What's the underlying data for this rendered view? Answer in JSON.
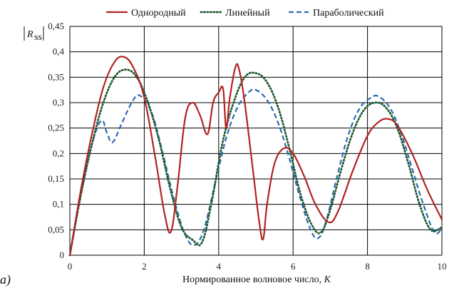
{
  "chart_data": {
    "type": "line",
    "panel_label": "a)",
    "xlabel_text": "Нормированное волновое число, ",
    "xlabel_var": "K",
    "ylabel_main": "R",
    "ylabel_sub": "ss",
    "xlim": [
      0,
      10
    ],
    "ylim": [
      0,
      0.45
    ],
    "grid": true,
    "legend_position": "top",
    "x_ticks": [
      "0",
      "2",
      "4",
      "6",
      "8",
      "10"
    ],
    "x_tick_values": [
      0,
      2,
      4,
      6,
      8,
      10
    ],
    "y_ticks": [
      "0",
      "0,05",
      "0,1",
      "0,15",
      "0,2",
      "0,25",
      "0,3",
      "0,35",
      "0,4",
      "0,45"
    ],
    "y_tick_values": [
      0,
      0.05,
      0.1,
      0.15,
      0.2,
      0.25,
      0.3,
      0.35,
      0.4,
      0.45
    ],
    "series": [
      {
        "name": "Однородный",
        "color": "#b22222",
        "dash": "solid",
        "x": [
          0,
          0.3,
          0.6,
          0.9,
          1.2,
          1.45,
          1.7,
          2.0,
          2.3,
          2.55,
          2.72,
          2.9,
          3.1,
          3.3,
          3.5,
          3.7,
          3.85,
          4.0,
          4.12,
          4.2,
          4.3,
          4.45,
          4.55,
          4.7,
          4.9,
          5.1,
          5.2,
          5.3,
          5.5,
          5.75,
          6.0,
          6.3,
          6.6,
          6.95,
          7.2,
          7.6,
          8.0,
          8.3,
          8.55,
          8.8,
          9.2,
          9.6,
          10.0
        ],
        "values": [
          0.0,
          0.13,
          0.24,
          0.33,
          0.38,
          0.39,
          0.37,
          0.31,
          0.19,
          0.08,
          0.047,
          0.14,
          0.27,
          0.3,
          0.275,
          0.238,
          0.3,
          0.32,
          0.327,
          0.25,
          0.31,
          0.37,
          0.365,
          0.3,
          0.18,
          0.06,
          0.033,
          0.1,
          0.18,
          0.21,
          0.2,
          0.155,
          0.1,
          0.065,
          0.085,
          0.165,
          0.235,
          0.262,
          0.268,
          0.255,
          0.2,
          0.13,
          0.07
        ]
      },
      {
        "name": "Линейный",
        "color": "#1e5b32",
        "dash": "dotted",
        "x": [
          0,
          0.3,
          0.6,
          0.9,
          1.2,
          1.5,
          1.8,
          2.1,
          2.4,
          2.7,
          3.0,
          3.3,
          3.55,
          3.8,
          4.1,
          4.4,
          4.7,
          5.0,
          5.3,
          5.6,
          5.9,
          6.2,
          6.5,
          6.75,
          7.0,
          7.3,
          7.6,
          7.9,
          8.2,
          8.5,
          8.8,
          9.1,
          9.4,
          9.7,
          10.0
        ],
        "values": [
          0.0,
          0.12,
          0.22,
          0.3,
          0.35,
          0.365,
          0.35,
          0.3,
          0.225,
          0.13,
          0.055,
          0.03,
          0.025,
          0.1,
          0.22,
          0.3,
          0.35,
          0.358,
          0.34,
          0.29,
          0.21,
          0.12,
          0.06,
          0.045,
          0.09,
          0.17,
          0.24,
          0.285,
          0.3,
          0.29,
          0.25,
          0.18,
          0.1,
          0.05,
          0.055
        ]
      },
      {
        "name": "Параболический",
        "color": "#2b6cb0",
        "dash": "dashed",
        "x": [
          0,
          0.3,
          0.6,
          0.85,
          1.0,
          1.15,
          1.4,
          1.7,
          1.9,
          2.2,
          2.5,
          2.8,
          3.1,
          3.35,
          3.6,
          3.9,
          4.2,
          4.5,
          4.8,
          5.0,
          5.3,
          5.6,
          5.9,
          6.2,
          6.5,
          6.7,
          6.9,
          7.2,
          7.5,
          7.8,
          8.1,
          8.3,
          8.6,
          8.9,
          9.2,
          9.5,
          9.8,
          10.0
        ],
        "values": [
          0.0,
          0.12,
          0.22,
          0.265,
          0.24,
          0.222,
          0.26,
          0.305,
          0.313,
          0.28,
          0.2,
          0.11,
          0.04,
          0.02,
          0.05,
          0.14,
          0.23,
          0.29,
          0.32,
          0.325,
          0.305,
          0.26,
          0.19,
          0.11,
          0.045,
          0.035,
          0.07,
          0.16,
          0.24,
          0.29,
          0.31,
          0.312,
          0.29,
          0.24,
          0.17,
          0.1,
          0.045,
          0.053
        ]
      }
    ]
  }
}
